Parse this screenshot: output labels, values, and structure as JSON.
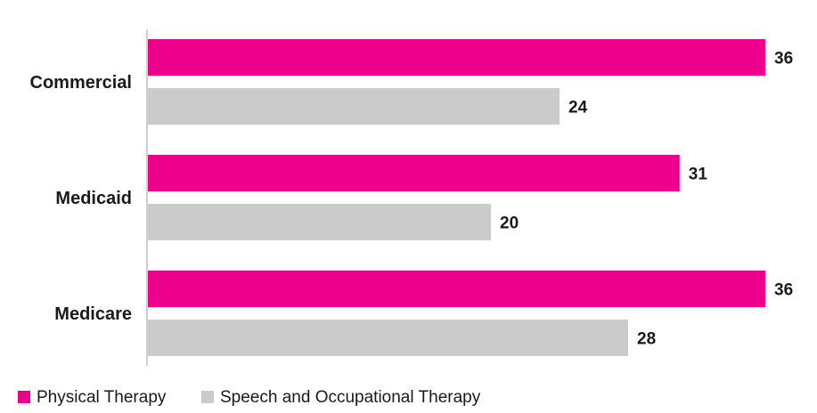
{
  "chart_data": {
    "type": "bar",
    "orientation": "horizontal",
    "categories": [
      "Commercial",
      "Medicaid",
      "Medicare"
    ],
    "series": [
      {
        "name": "Physical Therapy",
        "values": [
          36,
          31,
          36
        ],
        "color": "#ec008c"
      },
      {
        "name": "Speech and Occupational Therapy",
        "values": [
          24,
          20,
          28
        ],
        "color": "#cbcbcb"
      }
    ],
    "title": "",
    "xlabel": "",
    "ylabel": "",
    "xlim": [
      0,
      36
    ],
    "grid": false,
    "data_labels": true,
    "legend": "bottom-left"
  }
}
